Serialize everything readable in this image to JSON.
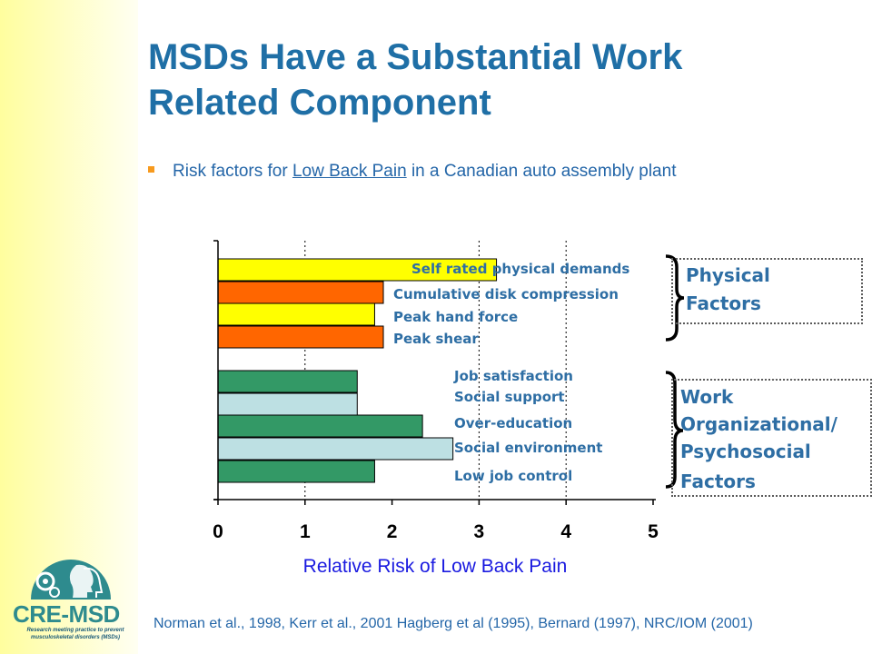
{
  "slide": {
    "title_line1": "MSDs Have a Substantial Work",
    "title_line2": "Related Component",
    "bullet_pre": "Risk factors for ",
    "bullet_link": "Low Back Pain",
    "bullet_post": " in a Canadian auto assembly plant",
    "citation": "Norman et al., 1998, Kerr et al., 2001 Hagberg et al (1995), Bernard (1997), NRC/IOM (2001)",
    "logo_name": "CRE-MSD",
    "logo_tagline": "Research meeting practice to prevent musculoskeletal disorders (MSDs)",
    "logo_icon": "gear-and-head-icon"
  },
  "groups": [
    {
      "label_lines": [
        "Physical",
        "Factors"
      ]
    },
    {
      "label_lines": [
        "Work",
        "Organizational/",
        "Psychosocial",
        "Factors"
      ]
    }
  ],
  "chart_data": {
    "type": "bar",
    "orientation": "horizontal",
    "title": "",
    "xlabel": "Relative Risk of Low Back Pain",
    "ylabel": "",
    "xlim": [
      0,
      5
    ],
    "xticks": [
      "0",
      "1",
      "2",
      "3",
      "4",
      "5"
    ],
    "reference_lines": [
      1,
      3,
      4
    ],
    "categories": [
      "Self rated physical demands",
      "Cumulative disk compression",
      "Peak hand force",
      "Peak shear",
      "Job satisfaction",
      "Social support",
      "Over-education",
      "Social environment",
      "Low job control"
    ],
    "values": [
      3.2,
      1.9,
      1.8,
      1.9,
      1.6,
      1.6,
      2.35,
      2.7,
      1.8
    ],
    "colors": [
      "#ffff00",
      "#ff6600",
      "#ffff00",
      "#ff6600",
      "#339966",
      "#bde0e3",
      "#339966",
      "#bde0e3",
      "#339966"
    ]
  }
}
